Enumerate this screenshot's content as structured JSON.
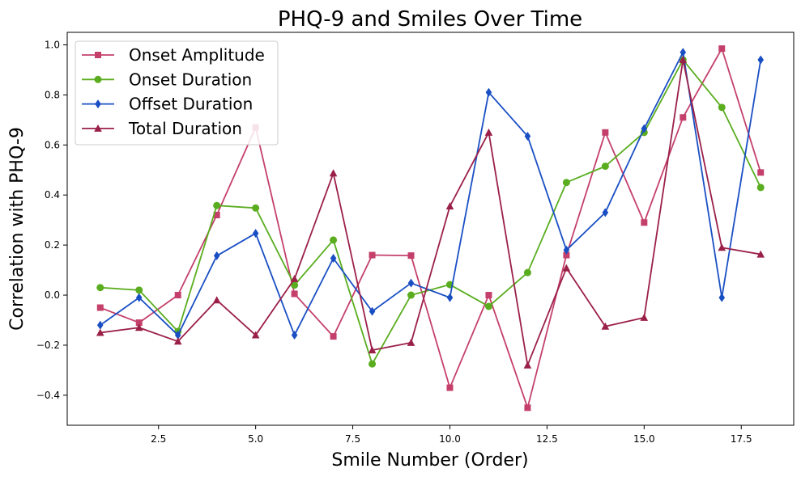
{
  "chart_data": {
    "type": "line",
    "title": "PHQ-9 and Smiles Over Time",
    "xlabel": "Smile Number (Order)",
    "ylabel": "Correlation with PHQ-9",
    "xlim": [
      0.15,
      18.85
    ],
    "ylim": [
      -0.52,
      1.05
    ],
    "xticks": [
      2.5,
      5.0,
      7.5,
      10.0,
      12.5,
      15.0,
      17.5
    ],
    "xtick_labels": [
      "2.5",
      "5.0",
      "7.5",
      "10.0",
      "12.5",
      "15.0",
      "17.5"
    ],
    "yticks": [
      -0.4,
      -0.2,
      0.0,
      0.2,
      0.4,
      0.6,
      0.8,
      1.0
    ],
    "ytick_labels": [
      "−0.4",
      "−0.2",
      "0.0",
      "0.2",
      "0.4",
      "0.6",
      "0.8",
      "1.0"
    ],
    "grid": false,
    "legend_position": "top-left",
    "x": [
      1,
      2,
      3,
      4,
      5,
      6,
      7,
      8,
      9,
      10,
      11,
      12,
      13,
      14,
      15,
      16,
      17,
      18
    ],
    "series": [
      {
        "name": "Onset Amplitude",
        "color": "#c4406b",
        "marker": "square",
        "values": [
          -0.05,
          -0.11,
          0.0,
          0.32,
          0.67,
          0.005,
          -0.165,
          0.16,
          0.158,
          -0.37,
          0.0,
          -0.45,
          0.16,
          0.65,
          0.29,
          0.71,
          0.985,
          0.49
        ]
      },
      {
        "name": "Onset Duration",
        "color": "#5aad1f",
        "marker": "circle",
        "values": [
          0.03,
          0.02,
          -0.145,
          0.358,
          0.348,
          0.04,
          0.22,
          -0.275,
          0.0,
          0.042,
          -0.045,
          0.09,
          0.45,
          0.515,
          0.65,
          0.94,
          0.75,
          0.43
        ]
      },
      {
        "name": "Offset Duration",
        "color": "#1a4fc4",
        "marker": "diamond",
        "values": [
          -0.12,
          -0.01,
          -0.16,
          0.157,
          0.247,
          -0.16,
          0.147,
          -0.065,
          0.048,
          -0.01,
          0.81,
          0.635,
          0.18,
          0.33,
          0.665,
          0.97,
          -0.01,
          0.94
        ]
      },
      {
        "name": "Total Duration",
        "color": "#9b2048",
        "marker": "triangle",
        "values": [
          -0.15,
          -0.13,
          -0.185,
          -0.02,
          -0.16,
          0.065,
          0.487,
          -0.22,
          -0.19,
          0.355,
          0.65,
          -0.28,
          0.108,
          -0.125,
          -0.09,
          0.94,
          0.19,
          0.163
        ]
      }
    ]
  }
}
